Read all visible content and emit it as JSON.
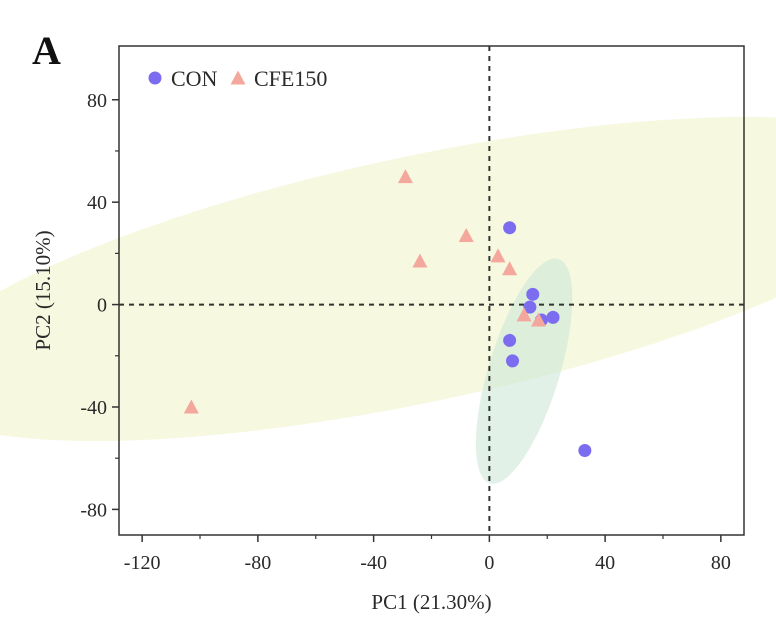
{
  "panel_label": "A",
  "chart_data": {
    "type": "scatter",
    "xlabel": "PC1 (21.30%)",
    "ylabel": "PC2 (15.10%)",
    "xlim": [
      -128,
      88
    ],
    "ylim": [
      -90,
      101
    ],
    "xticks": [
      -120,
      -80,
      -40,
      0,
      40,
      80
    ],
    "yticks": [
      -80,
      -40,
      0,
      40,
      80
    ],
    "reference_lines": {
      "x": 0,
      "y": 0,
      "style": "dashed"
    },
    "grid": false,
    "legend_position": "top-left",
    "series": [
      {
        "name": "CON",
        "marker": "circle",
        "color": "#7b6cf0",
        "points": [
          [
            7,
            30
          ],
          [
            15,
            4
          ],
          [
            14,
            -1
          ],
          [
            18,
            -6
          ],
          [
            22,
            -5
          ],
          [
            7,
            -14
          ],
          [
            8,
            -22
          ],
          [
            33,
            -57
          ]
        ],
        "ellipse": {
          "cx": 12,
          "cy": -26,
          "rx": 43,
          "ry": 13,
          "angle_deg": 73,
          "color": "#c8e6d6"
        }
      },
      {
        "name": "CFE150",
        "marker": "triangle",
        "color": "#f4a79c",
        "points": [
          [
            -29,
            50
          ],
          [
            -8,
            27
          ],
          [
            -24,
            17
          ],
          [
            3,
            19
          ],
          [
            7,
            14
          ],
          [
            12,
            -4
          ],
          [
            17,
            -6
          ],
          [
            -103,
            -40
          ]
        ],
        "ellipse": {
          "cx": -24,
          "cy": 10,
          "rx": 192,
          "ry": 45,
          "angle_deg": 12,
          "color": "#eef3c4"
        }
      }
    ]
  }
}
